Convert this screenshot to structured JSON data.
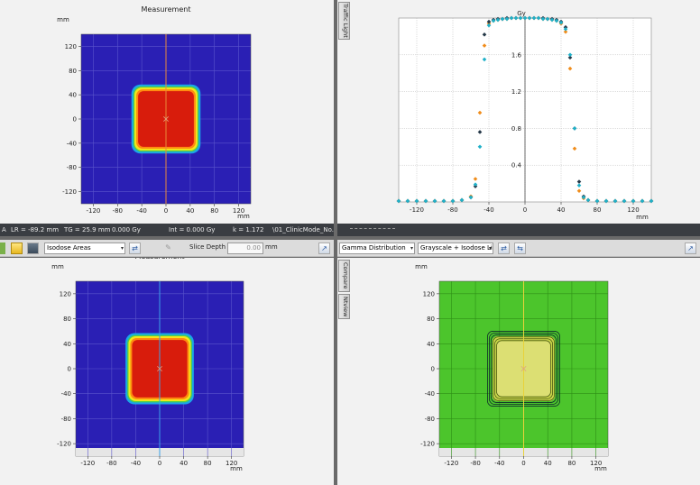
{
  "colors": {
    "dose_low": "#2a1fb4",
    "dose_mid_blue": "#1aa6e8",
    "dose_green": "#4fd04a",
    "dose_yellow": "#f3e61a",
    "dose_orange": "#ff8a10",
    "dose_high": "#d81c0c",
    "gamma_pass": "#4cc52c",
    "series_orange": "#f08c1a",
    "series_dark": "#253848",
    "series_cyan": "#1fb0c8",
    "crosshair_orange": "#e88a3a",
    "crosshair_blue": "#3aa2e8",
    "crosshair_yellow": "#e8d23a"
  },
  "top_left": {
    "title": "Measurement",
    "y_unit": "mm",
    "x_unit": "mm",
    "y_ticks": [
      "120",
      "80",
      "40",
      "0",
      "-40",
      "-80",
      "-120"
    ],
    "x_ticks": [
      "-120",
      "-80",
      "-40",
      "0",
      "40",
      "80",
      "120"
    ]
  },
  "top_right": {
    "title": "Gy",
    "x_unit": "mm",
    "side_tab": "Traffic Light",
    "y_ticks": [
      "1.6",
      "1.2",
      "0.8",
      "0.4"
    ],
    "x_ticks": [
      "-120",
      "-80",
      "-40",
      "0",
      "40",
      "80",
      "120"
    ]
  },
  "bottom_left": {
    "title": "Measurement",
    "y_unit": "mm",
    "x_unit": "mm",
    "y_ticks": [
      "120",
      "80",
      "40",
      "0",
      "-40",
      "-80",
      "-120"
    ],
    "x_ticks": [
      "-120",
      "-80",
      "-40",
      "0",
      "40",
      "80",
      "120"
    ]
  },
  "bottom_right": {
    "y_unit": "mm",
    "x_unit": "mm",
    "side_tab_1": "Compare",
    "side_tab_2": "Ntview",
    "y_ticks": [
      "120",
      "80",
      "40",
      "0",
      "-40",
      "-80",
      "-120"
    ],
    "x_ticks": [
      "-120",
      "-80",
      "-40",
      "0",
      "40",
      "80",
      "120"
    ]
  },
  "status": {
    "prefix": "A",
    "lr": "LR = -89.2 mm",
    "tg": "TG = 25.9 mm",
    "dose": "0.000 Gy",
    "int": "Int = 0.000 Gy",
    "k": "k = 1.172",
    "file": "\\01_ClinicMode_No..."
  },
  "toolbar_left": {
    "mode": "Isodose Areas",
    "slice_label": "Slice Depth",
    "slice_value": "0.00",
    "slice_unit": "mm"
  },
  "toolbar_right": {
    "mode": "Gamma Distribution",
    "display": "Grayscale + Isodose Li"
  },
  "chart_data": {
    "type": "scatter",
    "title": "Gy",
    "xlabel": "mm",
    "ylabel": "",
    "xlim": [
      -140,
      140
    ],
    "ylim": [
      0,
      2.0
    ],
    "x_ticks": [
      -120,
      -80,
      -40,
      0,
      40,
      80,
      120
    ],
    "y_ticks": [
      0.4,
      0.8,
      1.2,
      1.6
    ],
    "grid": true,
    "series": [
      {
        "color": "#f08c1a",
        "x": [
          -140,
          -130,
          -120,
          -110,
          -100,
          -90,
          -80,
          -70,
          -60,
          -55,
          -50,
          -45,
          -40,
          -35,
          -30,
          -25,
          -20,
          -15,
          -10,
          -5,
          0,
          5,
          10,
          15,
          20,
          25,
          30,
          35,
          40,
          45,
          50,
          55,
          60,
          65,
          70,
          80,
          90,
          100,
          110,
          120,
          130,
          140
        ],
        "y": [
          0.01,
          0.01,
          0.01,
          0.01,
          0.01,
          0.01,
          0.01,
          0.02,
          0.06,
          0.25,
          0.97,
          1.7,
          1.94,
          1.97,
          1.98,
          1.99,
          1.99,
          2.0,
          2.0,
          2.0,
          2.0,
          2.0,
          2.0,
          2.0,
          1.99,
          1.99,
          1.98,
          1.97,
          1.94,
          1.85,
          1.45,
          0.58,
          0.12,
          0.04,
          0.02,
          0.01,
          0.01,
          0.01,
          0.01,
          0.01,
          0.01,
          0.01
        ]
      },
      {
        "color": "#253848",
        "x": [
          -140,
          -130,
          -120,
          -110,
          -100,
          -90,
          -80,
          -70,
          -60,
          -55,
          -50,
          -45,
          -40,
          -35,
          -30,
          -25,
          -20,
          -15,
          -10,
          -5,
          0,
          5,
          10,
          15,
          20,
          25,
          30,
          35,
          40,
          45,
          50,
          55,
          60,
          65,
          70,
          80,
          90,
          100,
          110,
          120,
          130,
          140
        ],
        "y": [
          0.01,
          0.01,
          0.01,
          0.01,
          0.01,
          0.01,
          0.01,
          0.02,
          0.05,
          0.17,
          0.76,
          1.82,
          1.96,
          1.98,
          1.99,
          1.99,
          2.0,
          2.0,
          2.0,
          2.0,
          2.0,
          2.0,
          2.0,
          2.0,
          2.0,
          1.99,
          1.99,
          1.98,
          1.96,
          1.9,
          1.57,
          0.8,
          0.22,
          0.06,
          0.02,
          0.01,
          0.01,
          0.01,
          0.01,
          0.01,
          0.01,
          0.01
        ]
      },
      {
        "color": "#1fb0c8",
        "x": [
          -140,
          -130,
          -120,
          -110,
          -100,
          -90,
          -80,
          -70,
          -60,
          -55,
          -50,
          -45,
          -40,
          -35,
          -30,
          -25,
          -20,
          -15,
          -10,
          -5,
          0,
          5,
          10,
          15,
          20,
          25,
          30,
          35,
          40,
          45,
          50,
          55,
          60,
          65,
          70,
          80,
          90,
          100,
          110,
          120,
          130,
          140
        ],
        "y": [
          0.01,
          0.01,
          0.01,
          0.01,
          0.01,
          0.01,
          0.01,
          0.02,
          0.05,
          0.19,
          0.6,
          1.55,
          1.92,
          1.97,
          1.98,
          1.99,
          1.99,
          2.0,
          2.0,
          2.0,
          2.0,
          2.0,
          2.0,
          2.0,
          1.99,
          1.99,
          1.98,
          1.97,
          1.95,
          1.88,
          1.6,
          0.8,
          0.18,
          0.05,
          0.02,
          0.01,
          0.01,
          0.01,
          0.01,
          0.01,
          0.01,
          0.01
        ]
      }
    ]
  }
}
